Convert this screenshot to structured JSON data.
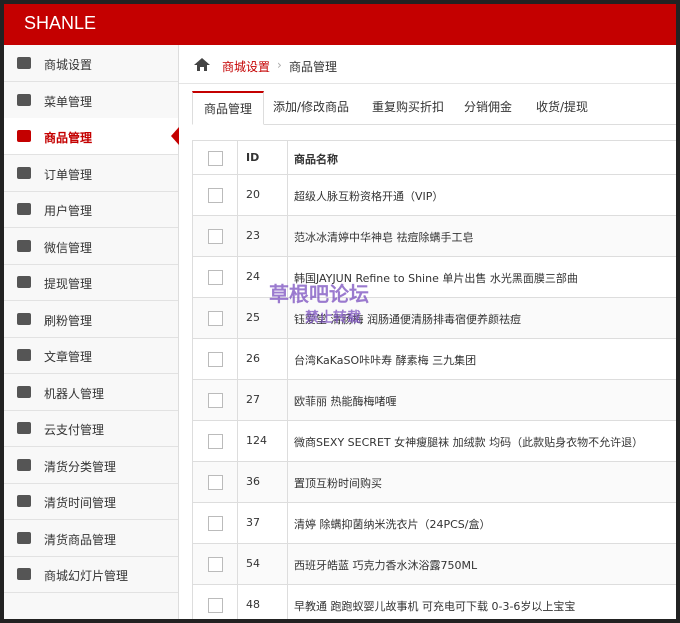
{
  "header": {
    "brand": "SHANLE"
  },
  "sidebar": {
    "items": [
      "商城设置",
      "菜单管理",
      "商品管理",
      "订单管理",
      "用户管理",
      "微信管理",
      "提现管理",
      "刷粉管理",
      "文章管理",
      "机器人管理",
      "云支付管理",
      "清货分类管理",
      "清货时间管理",
      "清货商品管理",
      "商城幻灯片管理"
    ],
    "active": 2
  },
  "breadcrumb": [
    "商城设置",
    "商品管理"
  ],
  "tabs": {
    "items": [
      "商品管理",
      "添加/修改商品",
      "重复购买折扣",
      "分销佣金",
      "收货/提现"
    ],
    "active": 0
  },
  "table": {
    "columns": [
      "ID",
      "商品名称"
    ],
    "rows": [
      [
        "20",
        "超级人脉互粉资格开通（VIP）"
      ],
      [
        "23",
        "范冰冰清婷中华神皂 祛痘除螨手工皂"
      ],
      [
        "24",
        "韩国JAYJUN Refine to Shine 单片出售 水光黑面膜三部曲"
      ],
      [
        "25",
        "钰爱堂 清肠梅 润肠通便清肠排毒宿便养颜祛痘"
      ],
      [
        "26",
        "台湾KaKaSO咔咔寿 酵素梅 三九集团"
      ],
      [
        "27",
        "欧菲丽 热能酶梅啫喱"
      ],
      [
        "124",
        "微商SEXY SECRET 女神瘦腿袜 加绒款 均码（此款贴身衣物不允许退）"
      ],
      [
        "36",
        "置顶互粉时间购买"
      ],
      [
        "37",
        "清婷 除螨抑菌纳米洗衣片（24PCS/盒）"
      ],
      [
        "54",
        "西班牙皓蓝 巧克力香水沐浴露750ML"
      ],
      [
        "48",
        "早教通 跑跑蚁婴儿故事机 可充电可下载 0-3-6岁以上宝宝"
      ]
    ]
  },
  "watermark": [
    "草根吧论坛",
    "禁止转载"
  ]
}
